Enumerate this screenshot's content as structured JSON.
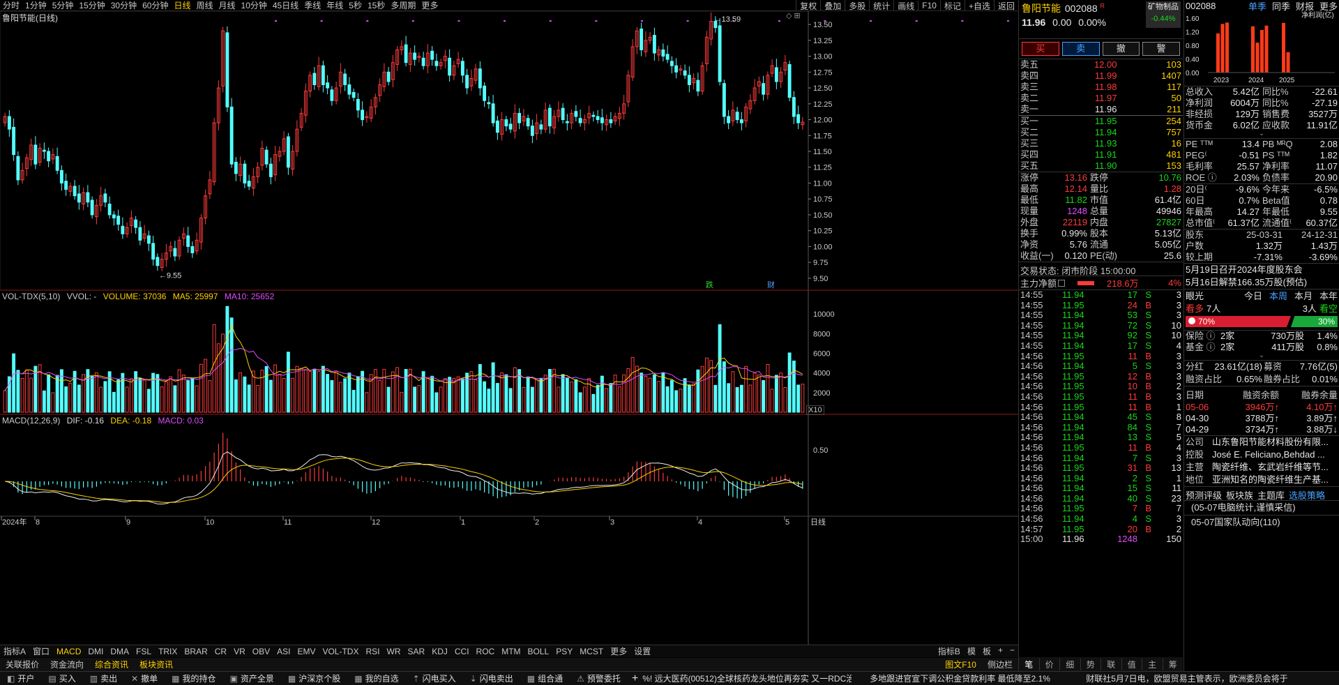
{
  "top_toolbar": {
    "periods": [
      "分时",
      "1分钟",
      "5分钟",
      "15分钟",
      "30分钟",
      "60分钟",
      "日线",
      "周线",
      "月线",
      "10分钟",
      "45日线",
      "季线",
      "年线",
      "5秒",
      "15秒",
      "多周期",
      "更多"
    ],
    "active_period": "日线",
    "right_buttons": [
      "复权",
      "叠加",
      "多股",
      "统计",
      "画线",
      "F10",
      "标记",
      "+自选",
      "返回"
    ]
  },
  "main_panel": {
    "title": "鲁阳节能(日线)",
    "high_label": "13.59",
    "low_label": "9.55",
    "markers": [
      "跌",
      "财"
    ],
    "y_ticks": [
      "13.50",
      "13.25",
      "13.00",
      "12.75",
      "12.50",
      "12.25",
      "12.00",
      "11.75",
      "11.50",
      "11.25",
      "11.00",
      "10.75",
      "10.50",
      "10.25",
      "10.00",
      "9.75",
      "9.50"
    ]
  },
  "vol_panel": {
    "label": "VOL-TDX(5,10)",
    "vvol": "VVOL: -",
    "volume": "VOLUME: 37036",
    "ma5": "MA5: 25997",
    "ma10": "MA10: 25652",
    "y_ticks": [
      "10000",
      "8000",
      "6000",
      "4000",
      "2000"
    ],
    "unit": "X10"
  },
  "macd_panel": {
    "label": "MACD(12,26,9)",
    "dif": "DIF: -0.16",
    "dea": "DEA: -0.18",
    "macd": "MACD: 0.03",
    "y_ticks": [
      "0.50"
    ]
  },
  "x_axis": {
    "labels": [
      "2024年",
      "8",
      "9",
      "10",
      "11",
      "12",
      "1",
      "2",
      "3",
      "4",
      "5"
    ],
    "right": "日线"
  },
  "indicator_tabs": [
    "指标A",
    "窗口",
    "MACD",
    "DMI",
    "DMA",
    "FSL",
    "TRIX",
    "BRAR",
    "CR",
    "VR",
    "OBV",
    "ASI",
    "EMV",
    "VOL-TDX",
    "RSI",
    "WR",
    "SAR",
    "KDJ",
    "CCI",
    "ROC",
    "MTM",
    "BOLL",
    "PSY",
    "MCST",
    "更多",
    "设置"
  ],
  "indicator_active": "MACD",
  "indicator_right": [
    "指标B",
    "模",
    "板",
    "+",
    "−"
  ],
  "info_tabs": [
    "关联报价",
    "资金流向",
    "综合资讯",
    "板块资讯"
  ],
  "info_tabs_highlight": [
    "综合资讯",
    "板块资讯"
  ],
  "info_right": [
    "图文F10",
    "侧边栏"
  ],
  "status_bar": {
    "buttons": [
      "开户",
      "买入",
      "卖出",
      "撤单",
      "我的持仓",
      "资产全景",
      "沪深京个股",
      "我的自选",
      "闪电买入",
      "闪电卖出",
      "组合通",
      "预警委托"
    ],
    "news": "%! 远大医药(00512)全球核药龙头地位再夯实 又一RDC治疗产",
    "news2": "多地跟进官宣下调公积金贷款利率 最低降至2.1%",
    "news3": "财联社5月7日电，欧盟贸易主管表示，欧洲委员会将于"
  },
  "quote": {
    "name": "鲁阳节能",
    "code": "002088",
    "badge": "R",
    "sector": "矿物制品",
    "sector_change": "-0.44%",
    "price": "11.96",
    "change": "0.00",
    "change_pct": "0.00%",
    "buttons": [
      "买",
      "卖",
      "撤",
      "警"
    ],
    "asks": [
      {
        "label": "卖五",
        "price": "12.00",
        "vol": "103"
      },
      {
        "label": "卖四",
        "price": "11.99",
        "vol": "1407"
      },
      {
        "label": "卖三",
        "price": "11.98",
        "vol": "117"
      },
      {
        "label": "卖二",
        "price": "11.97",
        "vol": "50"
      },
      {
        "label": "卖一",
        "price": "11.96",
        "vol": "211"
      }
    ],
    "bids": [
      {
        "label": "买一",
        "price": "11.95",
        "vol": "254"
      },
      {
        "label": "买二",
        "price": "11.94",
        "vol": "757"
      },
      {
        "label": "买三",
        "price": "11.93",
        "vol": "16"
      },
      {
        "label": "买四",
        "price": "11.91",
        "vol": "481"
      },
      {
        "label": "买五",
        "price": "11.90",
        "vol": "153"
      }
    ],
    "stats": [
      {
        "l1": "涨停",
        "v1": "13.16",
        "c1": "red",
        "l2": "跌停",
        "v2": "10.76",
        "c2": "grn"
      },
      {
        "l1": "最高",
        "v1": "12.14",
        "c1": "red",
        "l2": "量比",
        "v2": "1.28",
        "c2": "red"
      },
      {
        "l1": "最低",
        "v1": "11.82",
        "c1": "grn",
        "l2": "市值",
        "v2": "61.4亿",
        "c2": "wht"
      },
      {
        "l1": "现量",
        "v1": "1248",
        "c1": "pur",
        "l2": "总量",
        "v2": "49946",
        "c2": "wht"
      },
      {
        "l1": "外盘",
        "v1": "22119",
        "c1": "red",
        "l2": "内盘",
        "v2": "27827",
        "c2": "grn"
      },
      {
        "l1": "换手",
        "v1": "0.99%",
        "c1": "wht",
        "l2": "股本",
        "v2": "5.13亿",
        "c2": "wht"
      },
      {
        "l1": "净资",
        "v1": "5.76",
        "c1": "wht",
        "l2": "流通",
        "v2": "5.05亿",
        "c2": "wht"
      },
      {
        "l1": "收益(一)",
        "v1": "0.120",
        "c1": "wht",
        "l2": "PE(动)",
        "v2": "25.6",
        "c2": "wht"
      }
    ],
    "trade_status": "交易状态: 闭市阶段 15:00:00",
    "main_flow_label": "主力净额",
    "main_flow_value": "218.6万",
    "main_flow_pct": "4%",
    "ticks": [
      [
        "14:55",
        "11.94",
        "17",
        "S",
        "3"
      ],
      [
        "14:55",
        "11.95",
        "24",
        "B",
        "3"
      ],
      [
        "14:55",
        "11.94",
        "53",
        "S",
        "3"
      ],
      [
        "14:55",
        "11.94",
        "72",
        "S",
        "10"
      ],
      [
        "14:55",
        "11.94",
        "92",
        "S",
        "10"
      ],
      [
        "14:55",
        "11.94",
        "17",
        "S",
        "4"
      ],
      [
        "14:56",
        "11.95",
        "11",
        "B",
        "3"
      ],
      [
        "14:56",
        "11.94",
        "5",
        "S",
        "3"
      ],
      [
        "14:56",
        "11.95",
        "12",
        "B",
        "3"
      ],
      [
        "14:56",
        "11.95",
        "10",
        "B",
        "2"
      ],
      [
        "14:56",
        "11.95",
        "11",
        "B",
        "3"
      ],
      [
        "14:56",
        "11.95",
        "11",
        "B",
        "1"
      ],
      [
        "14:56",
        "11.94",
        "45",
        "S",
        "8"
      ],
      [
        "14:56",
        "11.94",
        "84",
        "S",
        "7"
      ],
      [
        "14:56",
        "11.94",
        "13",
        "S",
        "5"
      ],
      [
        "14:56",
        "11.95",
        "11",
        "B",
        "4"
      ],
      [
        "14:56",
        "11.94",
        "7",
        "S",
        "3"
      ],
      [
        "14:56",
        "11.95",
        "31",
        "B",
        "13"
      ],
      [
        "14:56",
        "11.94",
        "2",
        "S",
        "1"
      ],
      [
        "14:56",
        "11.94",
        "15",
        "S",
        "11"
      ],
      [
        "14:56",
        "11.94",
        "40",
        "S",
        "23"
      ],
      [
        "14:56",
        "11.95",
        "7",
        "B",
        "7"
      ],
      [
        "14:56",
        "11.94",
        "4",
        "S",
        "3"
      ],
      [
        "14:57",
        "11.95",
        "20",
        "B",
        "2"
      ],
      [
        "15:00",
        "11.96",
        "1248",
        "",
        "150"
      ]
    ]
  },
  "f10": {
    "code": "002088",
    "tabs": [
      "单季",
      "同季",
      "财报",
      "更多"
    ],
    "chart_title": "净利润(亿)",
    "mini_chart_data": {
      "type": "bar",
      "y_ticks": [
        "1.60",
        "1.20",
        "0.80",
        "0.40",
        "0.00"
      ],
      "x_labels": [
        "2023",
        "2024",
        "2025"
      ],
      "values": [
        1.15,
        1.43,
        1.47,
        1.36,
        0.88,
        1.25,
        1.38,
        1.46,
        0.6
      ]
    },
    "fin_rows": [
      {
        "l1": "总收入",
        "v1": "5.42亿",
        "l2": "同比%",
        "v2": "-22.61"
      },
      {
        "l1": "净利润",
        "v1": "6004万",
        "l2": "同比%",
        "v2": "-27.19"
      },
      {
        "l1": "非经损",
        "v1": "129万",
        "l2": "销售费",
        "v2": "3527万"
      },
      {
        "l1": "货币金",
        "v1": "6.02亿",
        "l2": "应收款",
        "v2": "11.91亿"
      }
    ],
    "val_rows": [
      {
        "l1": "PE ᵀᵀᴹ",
        "v1": "13.4",
        "l2": "PB ᴹᴿQ",
        "v2": "2.08"
      },
      {
        "l1": "PEG⁽",
        "v1": "-0.51",
        "l2": "PS ᵀᵀᴹ",
        "v2": "1.82"
      },
      {
        "l1": "毛利率",
        "v1": "25.57",
        "l2": "净利率",
        "v2": "11.07"
      },
      {
        "l1": "ROE ⓘ",
        "v1": "2.03%",
        "l2": "负债率",
        "v2": "20.90"
      }
    ],
    "perf_rows": [
      {
        "l1": "20日⁽",
        "v1": "-9.6%",
        "l2": "今年来",
        "v2": "-6.5%"
      },
      {
        "l1": "60日",
        "v1": "0.7%",
        "l2": "Beta值",
        "v2": "0.78"
      },
      {
        "l1": "年最高",
        "v1": "14.27",
        "l2": "年最低",
        "v2": "9.55"
      },
      {
        "l1": "总市值⁽",
        "v1": "61.37亿",
        "l2": "流通值⁽",
        "v2": "60.37亿"
      }
    ],
    "holders": {
      "label": "股东",
      "d1": "25-03-31",
      "d2": "24-12-31",
      "rows": [
        {
          "l": "户数",
          "v1": "1.32万",
          "v2": "1.43万"
        },
        {
          "l": "较上期",
          "v1": "-7.31%",
          "v2": "-3.69%"
        }
      ]
    },
    "notices": [
      "5月19日召开2024年度股东会",
      "5月16日解禁166.35万股(预估)"
    ],
    "eye": {
      "label": "眼光",
      "tabs": [
        "今日",
        "本周",
        "本月",
        "本年"
      ],
      "active": "本周",
      "bull": "看多",
      "bull_n": "7人",
      "bear_n": "3人",
      "bear": "看空",
      "bull_pct": "70%",
      "bear_pct": "30%"
    },
    "inst": [
      {
        "l": "保险 ⓘ",
        "n": "2家",
        "v": "730万股",
        "p": "1.4%"
      },
      {
        "l": "基金 ⓘ",
        "n": "2家",
        "v": "411万股",
        "p": "0.8%"
      }
    ],
    "dividend": {
      "l1": "分红",
      "v1": "23.61亿(18)",
      "l2": "募资",
      "v2": "7.76亿(5)"
    },
    "margin_ratio": {
      "l1": "融资占比",
      "v1": "0.65%",
      "l2": "融券占比",
      "v2": "0.01%"
    },
    "margin": {
      "headers": [
        "日期",
        "融资余额",
        "融券余量"
      ],
      "rows": [
        {
          "d": "05-06",
          "a": "3946万↑",
          "b": "4.10万↑"
        },
        {
          "d": "04-30",
          "a": "3788万↑",
          "b": "3.89万↑"
        },
        {
          "d": "04-29",
          "a": "3734万↑",
          "b": "3.88万↓"
        }
      ]
    },
    "company": [
      {
        "l": "公司",
        "v": "山东鲁阳节能材料股份有限..."
      },
      {
        "l": "控股",
        "v": "José E. Feliciano,Behdad ..."
      },
      {
        "l": "主营",
        "v": "陶瓷纤维、玄武岩纤维等节..."
      },
      {
        "l": "地位",
        "v": "亚洲知名的陶瓷纤维生产基..."
      }
    ],
    "links": [
      "预测评级",
      "板块族",
      "主题库",
      "选股策略"
    ],
    "news": [
      "(05-07电脑统计,谨慎采信)",
      "05-07国家队动向(110)"
    ],
    "bottom_tabs": [
      "笔",
      "价",
      "细",
      "势",
      "联",
      "值",
      "主",
      "筹"
    ]
  },
  "chart_data": {
    "type": "candlestick",
    "title": "鲁阳节能(日线)",
    "y_range": [
      9.4,
      13.6
    ],
    "month_labels": [
      "8",
      "9",
      "10",
      "11",
      "12",
      "1",
      "2",
      "3",
      "4",
      "5"
    ],
    "closes": [
      12.05,
      11.85,
      11.45,
      11.05,
      11.2,
      11.4,
      11.6,
      11.3,
      11.55,
      11.5,
      11.35,
      11.45,
      11.2,
      11.0,
      10.9,
      10.95,
      10.8,
      10.7,
      10.85,
      10.7,
      10.5,
      10.65,
      10.8,
      10.7,
      10.5,
      10.45,
      10.35,
      10.2,
      10.3,
      10.45,
      10.3,
      10.1,
      10.2,
      10.05,
      9.8,
      9.7,
      9.8,
      9.9,
      10.0,
      9.85,
      10.1,
      10.2,
      10.0,
      9.9,
      10.1,
      10.45,
      10.8,
      11.05,
      11.95,
      12.5,
      13.4,
      12.2,
      11.3,
      11.15,
      11.3,
      11.0,
      10.95,
      11.1,
      11.25,
      11.55,
      11.3,
      11.1,
      11.45,
      11.5,
      11.7,
      11.25,
      11.5,
      11.85,
      12.1,
      12.45,
      12.7,
      12.55,
      12.85,
      12.55,
      12.5,
      12.3,
      12.5,
      12.75,
      12.55,
      12.4,
      12.35,
      12.15,
      12.0,
      12.05,
      12.2,
      12.35,
      12.55,
      12.75,
      12.6,
      12.9,
      13.1,
      13.15,
      12.9,
      13.05,
      12.95,
      13.0,
      12.85,
      13.05,
      12.95,
      12.85,
      12.9,
      13.0,
      12.7,
      12.85,
      12.95,
      12.7,
      12.5,
      12.65,
      12.8,
      12.5,
      12.3,
      12.25,
      11.95,
      11.8,
      12.0,
      11.9,
      11.85,
      12.1,
      11.95,
      12.05,
      11.9,
      11.75,
      11.95,
      11.85,
      12.15,
      11.9,
      12.05,
      12.15,
      12.0,
      11.95,
      12.1,
      12.05,
      11.95,
      12.0,
      12.1,
      12.05,
      12.0,
      11.95,
      12.0,
      11.95,
      12.05,
      12.1,
      12.25,
      12.7,
      13.15,
      13.4,
      13.1,
      13.25,
      13.3,
      13.05,
      13.1,
      13.0,
      12.95,
      12.85,
      12.75,
      12.8,
      12.7,
      12.55,
      12.65,
      12.45,
      12.85,
      13.3,
      13.55,
      13.45,
      12.6,
      12.05,
      11.95,
      12.15,
      12.0,
      11.95,
      12.2,
      12.3,
      12.5,
      12.6,
      12.4,
      12.7,
      12.85,
      12.6,
      12.75,
      12.9,
      12.35,
      12.05,
      11.95,
      11.96
    ]
  }
}
